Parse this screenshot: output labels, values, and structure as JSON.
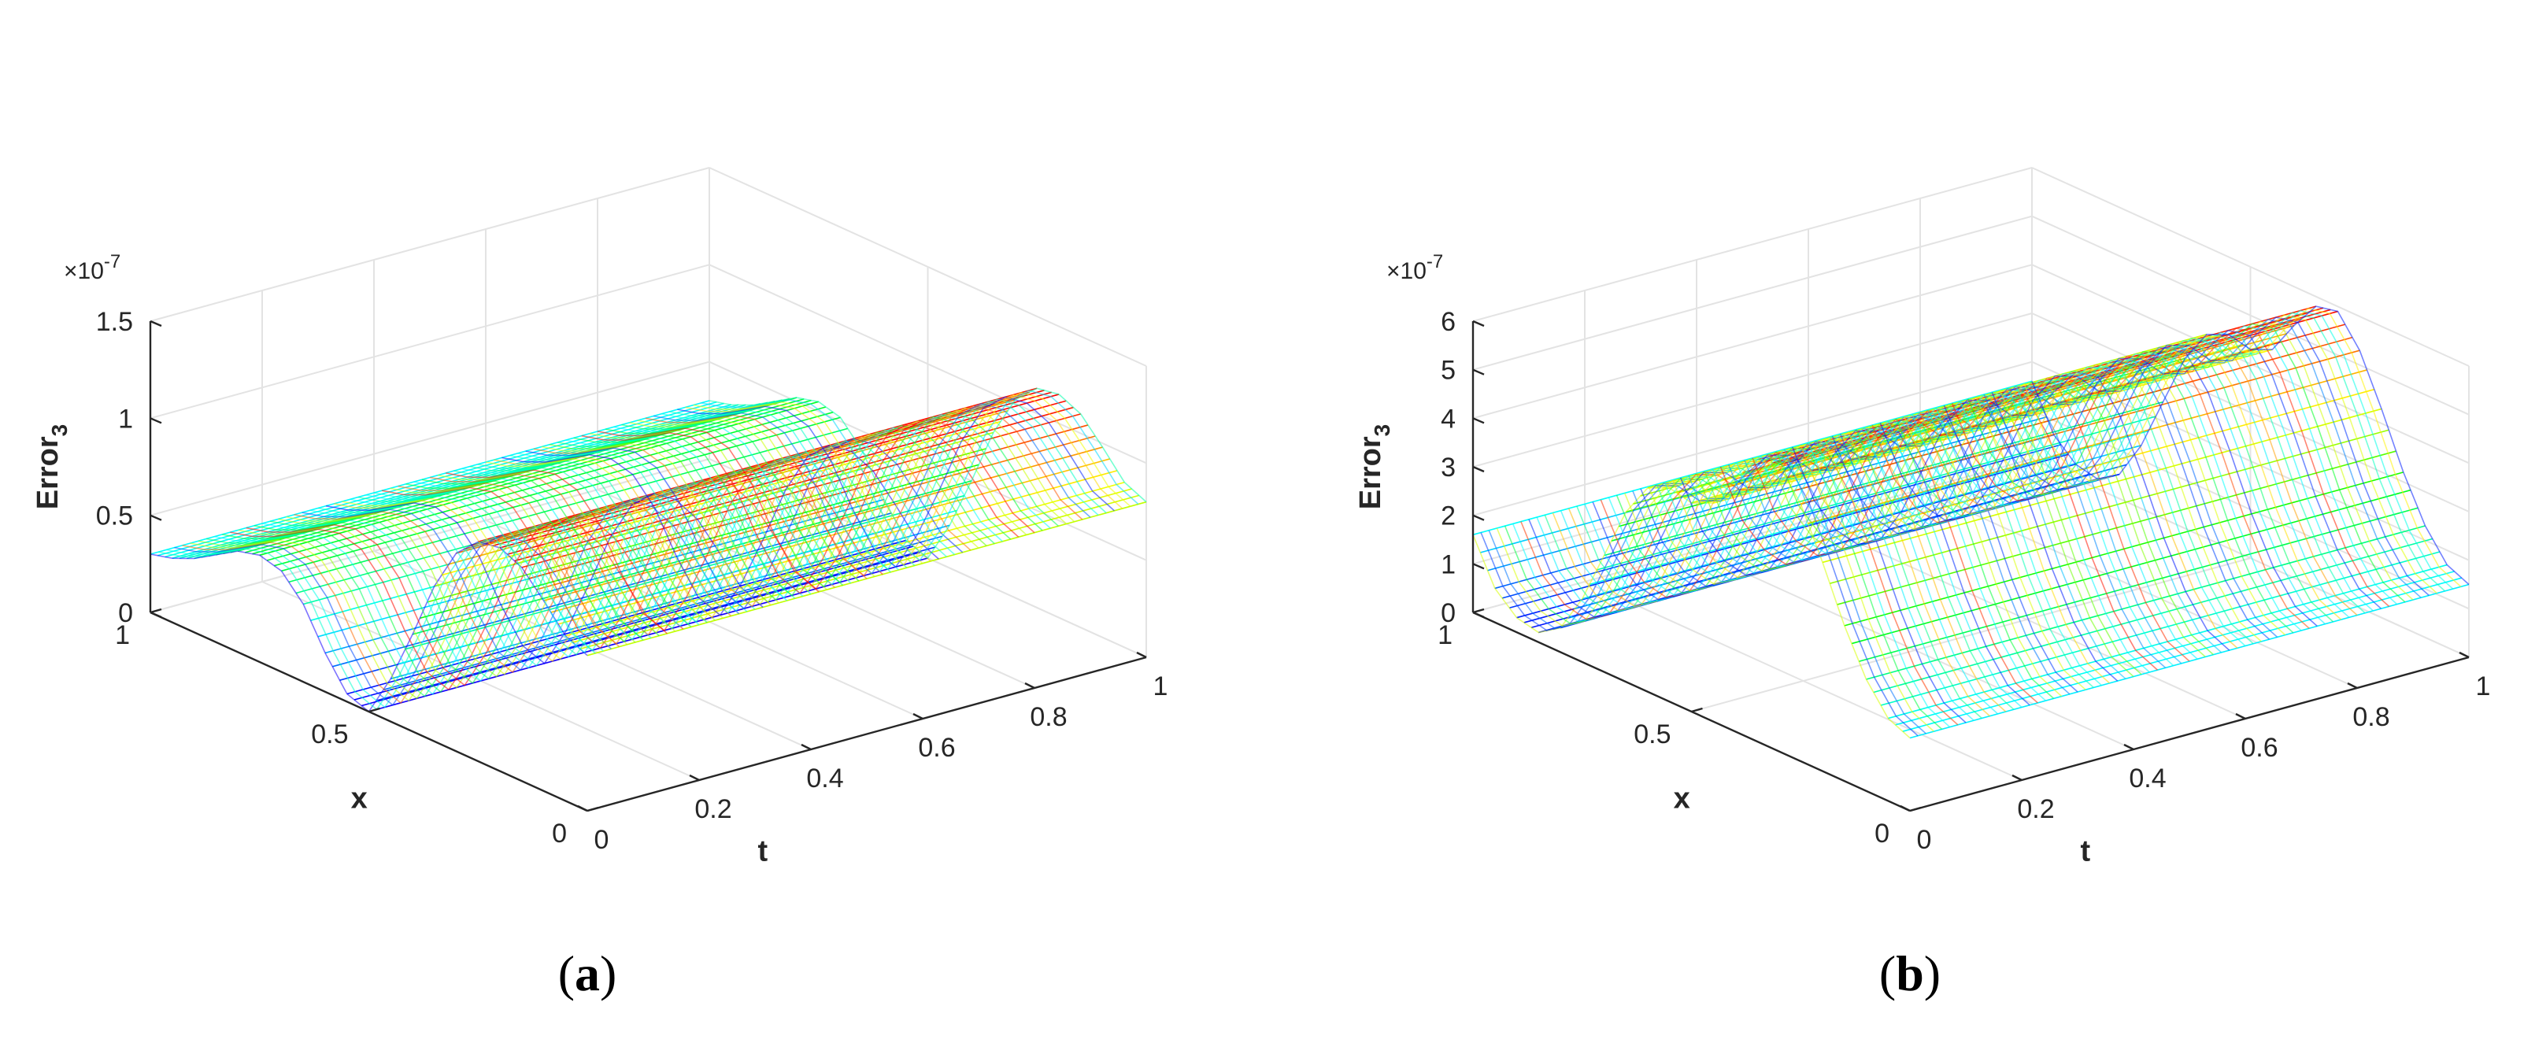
{
  "chart_data": [
    {
      "type": "surface",
      "panel": "a",
      "caption": "a",
      "colormap": "hsv",
      "zlabel": "Error",
      "zlabel_sub": "3",
      "xlabel": "x",
      "ylabel": "t",
      "z_exponent": "×10",
      "z_exponent_power": "-7",
      "zlim": [
        0,
        1.5
      ],
      "xlim": [
        0,
        1
      ],
      "tlim": [
        0,
        1
      ],
      "z_ticks": [
        "0",
        "0.5",
        "1",
        "1.5"
      ],
      "x_ticks": [
        "0",
        "0.5",
        "1"
      ],
      "t_ticks": [
        "0",
        "0.2",
        "0.4",
        "0.6",
        "0.8",
        "1"
      ],
      "profile_x": [
        0,
        0.05,
        0.1,
        0.15,
        0.2,
        0.25,
        0.3,
        0.35,
        0.4,
        0.45,
        0.5,
        0.55,
        0.6,
        0.65,
        0.7,
        0.75,
        0.8,
        0.85,
        0.9,
        0.95,
        1.0
      ],
      "profile_error": [
        0.8,
        0.85,
        0.98,
        1.1,
        1.15,
        1.13,
        1.02,
        0.8,
        0.5,
        0.22,
        0.0,
        0.04,
        0.2,
        0.4,
        0.52,
        0.55,
        0.52,
        0.45,
        0.38,
        0.33,
        0.3
      ],
      "max_error": 1.15
    },
    {
      "type": "surface",
      "panel": "b",
      "caption": "b",
      "colormap": "hsv",
      "zlabel": "Error",
      "zlabel_sub": "3",
      "xlabel": "x",
      "ylabel": "t",
      "z_exponent": "×10",
      "z_exponent_power": "-7",
      "zlim": [
        0,
        6
      ],
      "xlim": [
        0,
        1
      ],
      "tlim": [
        0,
        1
      ],
      "z_ticks": [
        "0",
        "1",
        "2",
        "3",
        "4",
        "5",
        "6"
      ],
      "x_ticks": [
        "0",
        "0.5",
        "1"
      ],
      "t_ticks": [
        "0",
        "0.2",
        "0.4",
        "0.6",
        "0.8",
        "1"
      ],
      "profile_x": [
        0,
        0.05,
        0.1,
        0.15,
        0.2,
        0.25,
        0.3,
        0.35,
        0.4,
        0.45,
        0.5,
        0.55,
        0.6,
        0.65,
        0.7,
        0.75,
        0.8,
        0.85,
        0.9,
        0.95,
        1.0
      ],
      "profile_error": [
        1.5,
        1.7,
        2.3,
        3.2,
        4.3,
        5.3,
        5.9,
        5.8,
        5.2,
        4.5,
        4.3,
        4.4,
        4.2,
        3.5,
        2.4,
        1.3,
        0.5,
        0.2,
        0.3,
        0.7,
        1.6
      ],
      "max_error": 6.0
    }
  ]
}
